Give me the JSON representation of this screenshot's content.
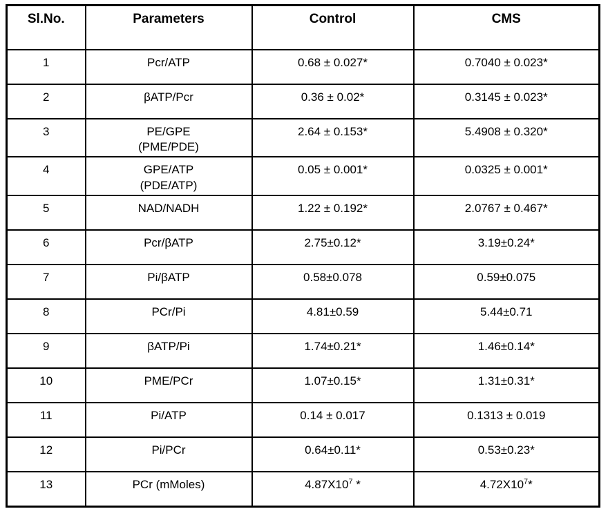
{
  "table": {
    "columns": [
      "Sl.No.",
      "Parameters",
      "Control",
      "CMS"
    ],
    "rows": [
      [
        "1",
        "Pcr/ATP",
        "0.68 ± 0.027*",
        "0.7040 ± 0.023*"
      ],
      [
        "2",
        "βATP/Pcr",
        "0.36 ± 0.02*",
        "0.3145 ± 0.023*"
      ],
      [
        "3",
        "PE/GPE\n(PME/PDE)",
        "2.64 ± 0.153*",
        "5.4908 ± 0.320*"
      ],
      [
        "4",
        "GPE/ATP\n(PDE/ATP)",
        "0.05 ± 0.001*",
        "0.0325 ± 0.001*"
      ],
      [
        "5",
        "NAD/NADH",
        "1.22 ± 0.192*",
        "2.0767 ± 0.467*"
      ],
      [
        "6",
        "Pcr/βATP",
        "2.75±0.12*",
        "3.19±0.24*"
      ],
      [
        "7",
        "Pi/βATP",
        "0.58±0.078",
        "0.59±0.075"
      ],
      [
        "8",
        "PCr/Pi",
        "4.81±0.59",
        "5.44±0.71"
      ],
      [
        "9",
        "βATP/Pi",
        "1.74±0.21*",
        "1.46±0.14*"
      ],
      [
        "10",
        "PME/PCr",
        "1.07±0.15*",
        "1.31±0.31*"
      ],
      [
        "11",
        "Pi/ATP",
        "0.14 ± 0.017",
        "0.1313 ± 0.019"
      ],
      [
        "12",
        "Pi/PCr",
        "0.64±0.11*",
        "0.53±0.23*"
      ],
      [
        "13",
        "PCr (mMoles)",
        "4.87X10^{7} *",
        "4.72X10^{7}*"
      ]
    ]
  }
}
